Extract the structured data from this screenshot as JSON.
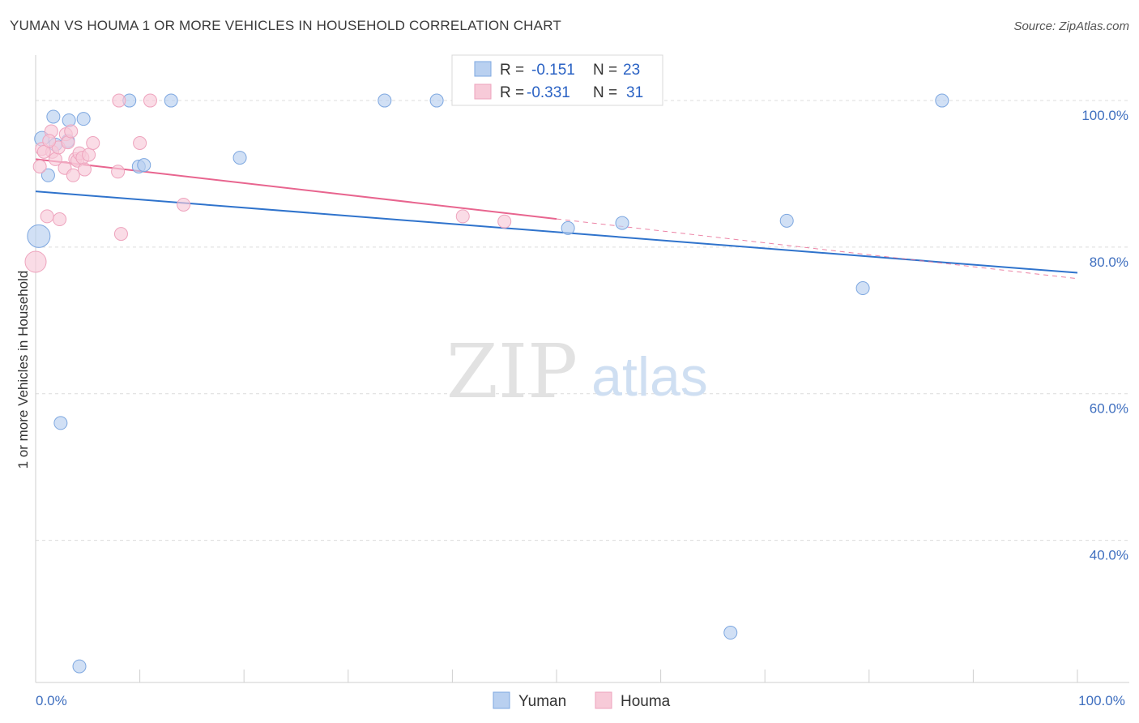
{
  "title": "YUMAN VS HOUMA 1 OR MORE VEHICLES IN HOUSEHOLD CORRELATION CHART",
  "source": "Source: ZipAtlas.com",
  "watermark": {
    "zip": "ZIP",
    "atlas": "atlas"
  },
  "chart_data": {
    "type": "scatter",
    "title": "YUMAN VS HOUMA 1 OR MORE VEHICLES IN HOUSEHOLD CORRELATION CHART",
    "xlabel": "",
    "ylabel": "1 or more Vehicles in Household",
    "xlim": [
      0,
      100
    ],
    "ylim": [
      20.6,
      106.2
    ],
    "x_tick_labels": [
      {
        "value": 0,
        "label": "0.0%"
      },
      {
        "value": 100,
        "label": "100.0%"
      }
    ],
    "y_ticks": [
      {
        "value": 100,
        "label": "100.0%"
      },
      {
        "value": 80,
        "label": "80.0%"
      },
      {
        "value": 60,
        "label": "60.0%"
      },
      {
        "value": 40,
        "label": "40.0%"
      }
    ],
    "x_minor_ticks": [
      0,
      10,
      20,
      30,
      40,
      50,
      60,
      70,
      80,
      90,
      100
    ],
    "grid": true,
    "legend": {
      "items": [
        {
          "r_label": "R =",
          "r_value": "-0.151",
          "n_label": "N =",
          "n_value": "23"
        },
        {
          "r_label": "R =",
          "r_value": "-0.331",
          "n_label": "N =",
          "n_value": "31"
        }
      ]
    },
    "series": [
      {
        "name": "Yuman",
        "color": "#7da7e0",
        "fill": "#b9d0f0",
        "line_color": "#2f73cc",
        "trend": {
          "x0": 0,
          "y0": 87.6,
          "x1": 100,
          "y1": 76.5,
          "dashed_from": null
        },
        "points": [
          {
            "x": 0.3,
            "y": 81.5,
            "size": 14
          },
          {
            "x": 0.6,
            "y": 94.8,
            "size": 9
          },
          {
            "x": 1.2,
            "y": 89.8,
            "size": 8
          },
          {
            "x": 1.7,
            "y": 97.8,
            "size": 8
          },
          {
            "x": 1.9,
            "y": 94.0,
            "size": 8
          },
          {
            "x": 3.2,
            "y": 97.3,
            "size": 8
          },
          {
            "x": 3.1,
            "y": 94.5,
            "size": 8
          },
          {
            "x": 4.6,
            "y": 97.5,
            "size": 8
          },
          {
            "x": 9.0,
            "y": 100.0,
            "size": 8
          },
          {
            "x": 9.9,
            "y": 91.0,
            "size": 8
          },
          {
            "x": 10.4,
            "y": 91.2,
            "size": 8
          },
          {
            "x": 13.0,
            "y": 100.0,
            "size": 8
          },
          {
            "x": 19.6,
            "y": 92.2,
            "size": 8
          },
          {
            "x": 33.5,
            "y": 100.0,
            "size": 8
          },
          {
            "x": 38.5,
            "y": 100.0,
            "size": 8
          },
          {
            "x": 51.1,
            "y": 82.6,
            "size": 8
          },
          {
            "x": 56.3,
            "y": 83.3,
            "size": 8
          },
          {
            "x": 72.1,
            "y": 83.6,
            "size": 8
          },
          {
            "x": 79.4,
            "y": 74.4,
            "size": 8
          },
          {
            "x": 87.0,
            "y": 100.0,
            "size": 8
          },
          {
            "x": 2.4,
            "y": 56.0,
            "size": 8
          },
          {
            "x": 66.7,
            "y": 27.4,
            "size": 8
          },
          {
            "x": 4.2,
            "y": 22.8,
            "size": 8
          }
        ]
      },
      {
        "name": "Houma",
        "color": "#eea3bd",
        "fill": "#f7cad8",
        "line_color": "#e8658f",
        "trend": {
          "x0": 0,
          "y0": 92.0,
          "x1": 100,
          "y1": 75.7,
          "dashed_from": 50
        },
        "points": [
          {
            "x": 0.0,
            "y": 78.0,
            "size": 13
          },
          {
            "x": 0.4,
            "y": 91.0,
            "size": 8
          },
          {
            "x": 0.6,
            "y": 93.4,
            "size": 8
          },
          {
            "x": 1.1,
            "y": 84.2,
            "size": 8
          },
          {
            "x": 1.5,
            "y": 95.8,
            "size": 8
          },
          {
            "x": 1.6,
            "y": 93.0,
            "size": 8
          },
          {
            "x": 1.9,
            "y": 92.0,
            "size": 8
          },
          {
            "x": 2.2,
            "y": 93.6,
            "size": 8
          },
          {
            "x": 2.3,
            "y": 83.8,
            "size": 8
          },
          {
            "x": 2.8,
            "y": 90.8,
            "size": 8
          },
          {
            "x": 2.9,
            "y": 95.4,
            "size": 8
          },
          {
            "x": 3.1,
            "y": 94.3,
            "size": 8
          },
          {
            "x": 3.4,
            "y": 95.8,
            "size": 8
          },
          {
            "x": 3.6,
            "y": 89.8,
            "size": 8
          },
          {
            "x": 3.8,
            "y": 92.0,
            "size": 8
          },
          {
            "x": 4.0,
            "y": 91.8,
            "size": 8
          },
          {
            "x": 4.2,
            "y": 92.8,
            "size": 8
          },
          {
            "x": 4.5,
            "y": 92.2,
            "size": 8
          },
          {
            "x": 4.7,
            "y": 90.6,
            "size": 8
          },
          {
            "x": 5.1,
            "y": 92.6,
            "size": 8
          },
          {
            "x": 5.5,
            "y": 94.2,
            "size": 8
          },
          {
            "x": 7.9,
            "y": 90.3,
            "size": 8
          },
          {
            "x": 8.0,
            "y": 100.0,
            "size": 8
          },
          {
            "x": 8.2,
            "y": 81.8,
            "size": 8
          },
          {
            "x": 10.0,
            "y": 94.2,
            "size": 8
          },
          {
            "x": 11.0,
            "y": 100.0,
            "size": 8
          },
          {
            "x": 14.2,
            "y": 85.8,
            "size": 8
          },
          {
            "x": 41.0,
            "y": 84.2,
            "size": 8
          },
          {
            "x": 45.0,
            "y": 83.5,
            "size": 8
          },
          {
            "x": 0.8,
            "y": 93.0,
            "size": 8
          },
          {
            "x": 1.3,
            "y": 94.5,
            "size": 8
          }
        ]
      }
    ]
  },
  "bottom_legend": [
    {
      "label": "Yuman"
    },
    {
      "label": "Houma"
    }
  ]
}
